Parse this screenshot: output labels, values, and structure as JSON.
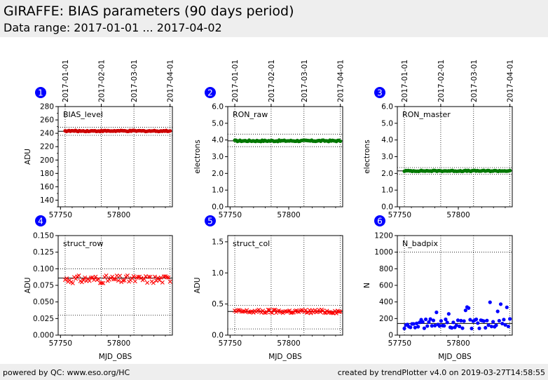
{
  "header": {
    "title": "GIRAFFE: BIAS parameters (90 days period)",
    "subtitle": "Data range: 2017-01-01 ... 2017-04-02"
  },
  "footer": {
    "left": "powered by QC: www.eso.org/HC",
    "right": "created by trendPlotter v4.0 on 2019-03-27T14:58:55"
  },
  "colors": {
    "header_bg": "#eeeeee",
    "badge": "#0000ff",
    "red": "#cc0000",
    "green": "#007700",
    "blue": "#0000ff"
  },
  "chart_data": [
    {
      "id": 1,
      "type": "scatter",
      "label": "BIAS_level",
      "ylabel": "ADU",
      "xlabel": "",
      "marker": "circle",
      "color": "#cc0000",
      "xlim": [
        57748,
        57846
      ],
      "ylim": [
        130,
        280
      ],
      "yticks": [
        "140",
        "160",
        "180",
        "200",
        "220",
        "240",
        "260",
        "280"
      ],
      "ytick_values": [
        140,
        160,
        180,
        200,
        220,
        240,
        260,
        280
      ],
      "xticks": [
        "57750",
        "57800"
      ],
      "xtick_values": [
        57750,
        57800
      ],
      "date_ticks": [
        "2017-01-01",
        "2017-02-01",
        "2017-03-01",
        "2017-04-01"
      ],
      "date_mjd": [
        57754,
        57785,
        57813,
        57844
      ],
      "hlines": [
        {
          "y": 243,
          "style": "solid"
        },
        {
          "y": 249,
          "style": "dotted"
        },
        {
          "y": 237,
          "style": "dotted"
        }
      ],
      "series": {
        "x_start": 57754,
        "x_end": 57844,
        "y_base": 243.5,
        "y_amp": 0.8,
        "count": 82
      }
    },
    {
      "id": 2,
      "type": "scatter",
      "label": "RON_raw",
      "ylabel": "electrons",
      "xlabel": "",
      "marker": "circle",
      "color": "#007700",
      "xlim": [
        57748,
        57846
      ],
      "ylim": [
        0,
        6
      ],
      "yticks": [
        "0.0",
        "1.0",
        "2.0",
        "3.0",
        "4.0",
        "5.0",
        "6.0"
      ],
      "ytick_values": [
        0,
        1,
        2,
        3,
        4,
        5,
        6
      ],
      "xticks": [
        "57750",
        "57800"
      ],
      "xtick_values": [
        57750,
        57800
      ],
      "date_ticks": [
        "2017-01-01",
        "2017-02-01",
        "2017-03-01",
        "2017-04-01"
      ],
      "date_mjd": [
        57754,
        57785,
        57813,
        57844
      ],
      "hlines": [
        {
          "y": 3.95,
          "style": "solid"
        },
        {
          "y": 4.35,
          "style": "dotted"
        },
        {
          "y": 3.6,
          "style": "dotted"
        }
      ],
      "series": {
        "x_start": 57754,
        "x_end": 57844,
        "y_base": 3.95,
        "y_amp": 0.04,
        "count": 82
      }
    },
    {
      "id": 3,
      "type": "scatter",
      "label": "RON_master",
      "ylabel": "electrons",
      "xlabel": "",
      "marker": "circle",
      "color": "#007700",
      "xlim": [
        57748,
        57846
      ],
      "ylim": [
        0,
        6
      ],
      "yticks": [
        "0.0",
        "1.0",
        "2.0",
        "3.0",
        "4.0",
        "5.0",
        "6.0"
      ],
      "ytick_values": [
        0,
        1,
        2,
        3,
        4,
        5,
        6
      ],
      "xticks": [
        "57750",
        "57800"
      ],
      "xtick_values": [
        57750,
        57800
      ],
      "date_ticks": [
        "2017-01-01",
        "2017-02-01",
        "2017-03-01",
        "2017-04-01"
      ],
      "date_mjd": [
        57754,
        57785,
        57813,
        57844
      ],
      "hlines": [
        {
          "y": 2.15,
          "style": "solid"
        },
        {
          "y": 2.35,
          "style": "dotted"
        },
        {
          "y": 1.95,
          "style": "dotted"
        }
      ],
      "series": {
        "x_start": 57754,
        "x_end": 57844,
        "y_base": 2.15,
        "y_amp": 0.03,
        "count": 82
      }
    },
    {
      "id": 4,
      "type": "scatter",
      "label": "struct_row",
      "ylabel": "ADU",
      "xlabel": "MJD_OBS",
      "marker": "x",
      "color": "#ff0000",
      "xlim": [
        57748,
        57846
      ],
      "ylim": [
        0,
        0.15
      ],
      "yticks": [
        "0.000",
        "0.025",
        "0.050",
        "0.075",
        "0.100",
        "0.125",
        "0.150"
      ],
      "ytick_values": [
        0,
        0.025,
        0.05,
        0.075,
        0.1,
        0.125,
        0.15
      ],
      "xticks": [
        "57750",
        "57800"
      ],
      "xtick_values": [
        57750,
        57800
      ],
      "date_ticks": [],
      "date_mjd": [
        57754,
        57785,
        57813,
        57844
      ],
      "hlines": [
        {
          "y": 0.086,
          "style": "solid"
        },
        {
          "y": 0.1,
          "style": "dotted"
        },
        {
          "y": 0.03,
          "style": "dotted"
        }
      ],
      "series": {
        "x_start": 57754,
        "x_end": 57844,
        "y_base": 0.084,
        "y_amp": 0.006,
        "count": 70
      }
    },
    {
      "id": 5,
      "type": "scatter",
      "label": "struct_col",
      "ylabel": "ADU",
      "xlabel": "MJD_OBS",
      "marker": "x",
      "color": "#ff0000",
      "xlim": [
        57748,
        57846
      ],
      "ylim": [
        0,
        1.6
      ],
      "yticks": [
        "0.0",
        "0.5",
        "1.0",
        "1.5"
      ],
      "ytick_values": [
        0,
        0.5,
        1.0,
        1.5
      ],
      "xticks": [
        "57750",
        "57800"
      ],
      "xtick_values": [
        57750,
        57800
      ],
      "date_ticks": [],
      "date_mjd": [
        57754,
        57785,
        57813,
        57844
      ],
      "hlines": [
        {
          "y": 0.38,
          "style": "solid"
        },
        {
          "y": 0.48,
          "style": "dotted"
        },
        {
          "y": 0.1,
          "style": "dotted"
        }
      ],
      "series": {
        "x_start": 57754,
        "x_end": 57844,
        "y_base": 0.38,
        "y_amp": 0.03,
        "count": 80
      }
    },
    {
      "id": 6,
      "type": "scatter",
      "label": "N_badpix",
      "ylabel": "N",
      "xlabel": "MJD_OBS",
      "marker": "circle",
      "color": "#0000ff",
      "xlim": [
        57748,
        57846
      ],
      "ylim": [
        0,
        1200
      ],
      "yticks": [
        "0",
        "200",
        "400",
        "600",
        "800",
        "1000",
        "1200"
      ],
      "ytick_values": [
        0,
        200,
        400,
        600,
        800,
        1000,
        1200
      ],
      "xticks": [
        "57750",
        "57800"
      ],
      "xtick_values": [
        57750,
        57800
      ],
      "date_ticks": [],
      "date_mjd": [
        57754,
        57785,
        57813,
        57844
      ],
      "hlines": [
        {
          "y": 140,
          "style": "solid"
        },
        {
          "y": 1000,
          "style": "dotted"
        }
      ],
      "series": {
        "x_start": 57754,
        "x_end": 57844,
        "y_base": 140,
        "y_amp": 60,
        "count": 70
      }
    }
  ]
}
